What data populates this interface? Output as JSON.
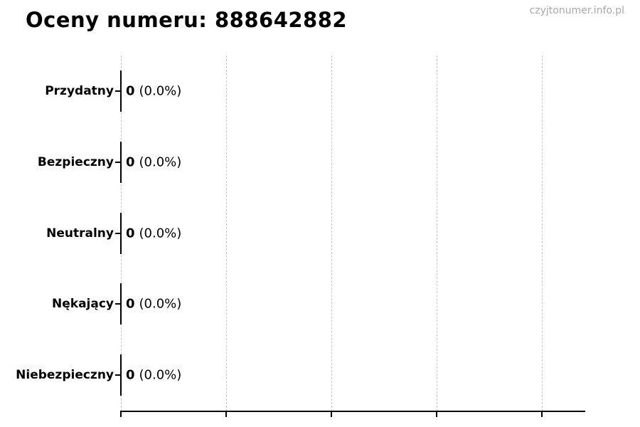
{
  "chart_data": {
    "type": "bar",
    "orientation": "horizontal",
    "title": "Oceny numeru: 888642882",
    "watermark": "czyjtonumer.info.pl",
    "categories": [
      "Przydatny",
      "Bezpieczny",
      "Neutralny",
      "Nękający",
      "Niebezpieczny"
    ],
    "values": [
      0,
      0,
      0,
      0,
      0
    ],
    "percentages": [
      0.0,
      0.0,
      0.0,
      0.0,
      0.0
    ],
    "bar_labels": [
      "0 (0.0%)",
      "0 (0.0%)",
      "0 (0.0%)",
      "0 (0.0%)",
      "0 (0.0%)"
    ],
    "counts": [
      "0",
      "0",
      "0",
      "0",
      "0"
    ],
    "percent_labels": [
      "(0.0%)",
      "(0.0%)",
      "(0.0%)",
      "(0.0%)",
      "(0.0%)"
    ],
    "xlabel": "",
    "ylabel": "",
    "x_tick_count": 5,
    "x_tick_labels_visible": false,
    "grid": "vertical-dashed",
    "gridline_color": "#c9c9c9",
    "bar_color": "#000000",
    "text_color": "#000000",
    "watermark_color": "#a9a9a9",
    "legend": "none"
  }
}
